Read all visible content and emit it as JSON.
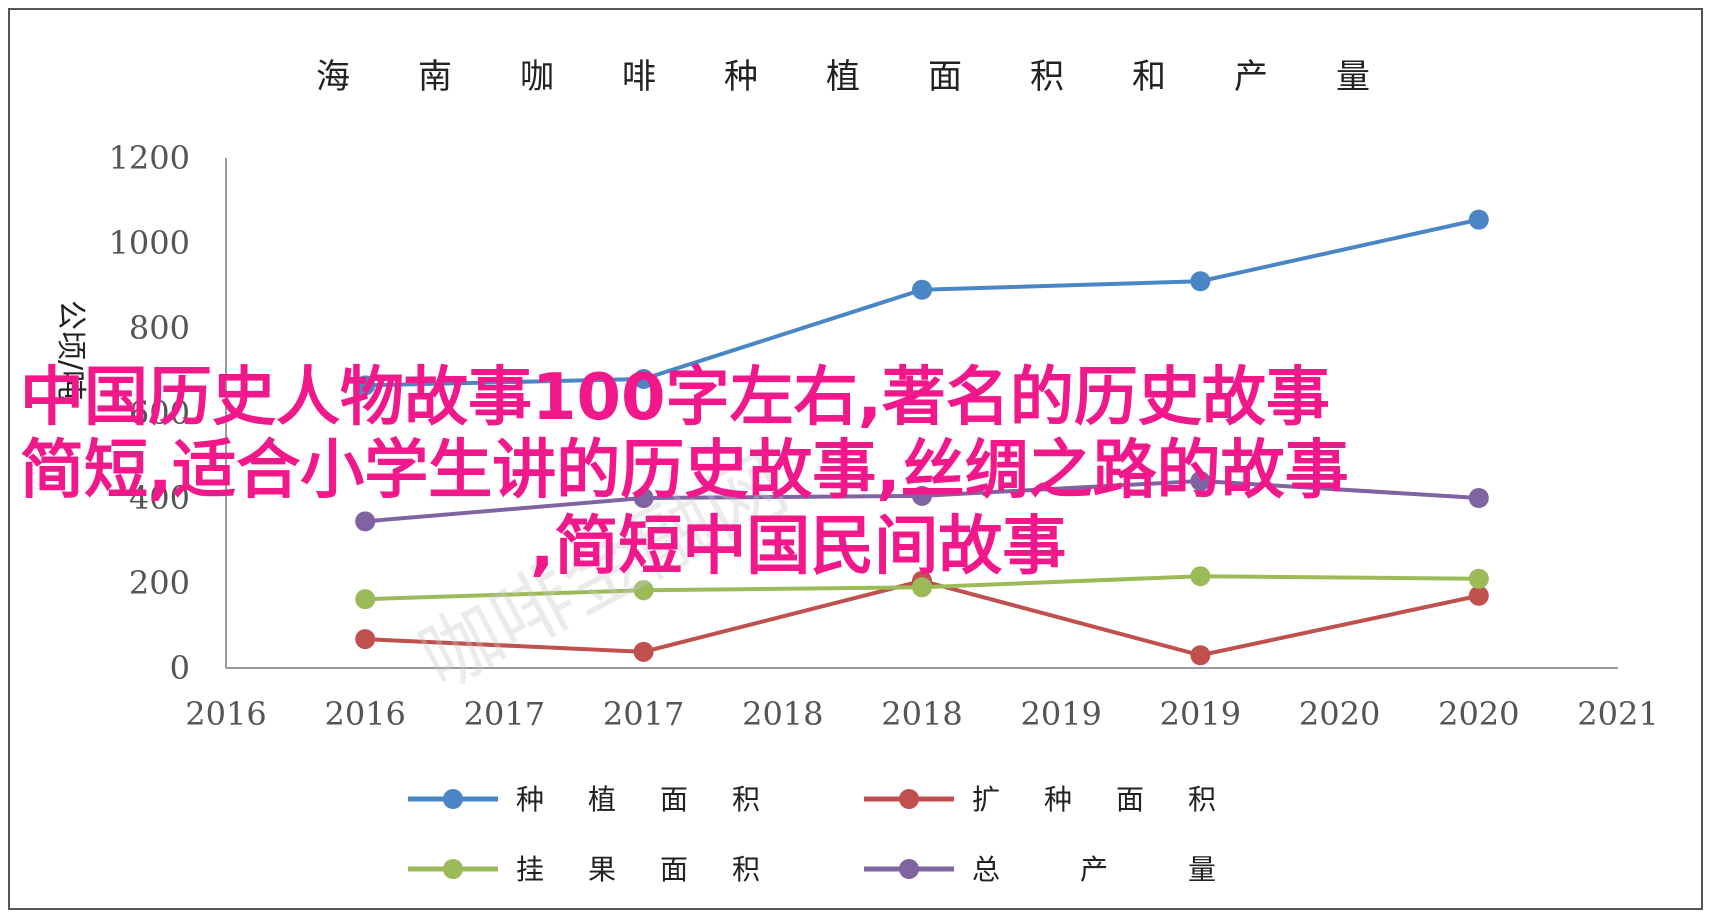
{
  "chart_data": {
    "type": "line",
    "title": "海南咖啡种植面积和产量",
    "ylabel": "公顷/吨",
    "xlabel": "",
    "ylim": [
      0,
      1200
    ],
    "y_ticks": [
      "0",
      "200",
      "400",
      "600",
      "800",
      "1000",
      "1200"
    ],
    "x_ticks": [
      "2016",
      "2016",
      "2017",
      "2017",
      "2018",
      "2018",
      "2019",
      "2019",
      "2020",
      "2020",
      "2021"
    ],
    "categories": [
      "2016",
      "2017",
      "2018",
      "2019",
      "2020"
    ],
    "grid": false,
    "legend_position": "bottom",
    "series": [
      {
        "name": "种植面积",
        "color": "#4a86c5",
        "values": [
          665,
          680,
          890,
          910,
          1055
        ]
      },
      {
        "name": "扩种面积",
        "color": "#c0504d",
        "values": [
          68,
          38,
          205,
          30,
          170
        ]
      },
      {
        "name": "挂果面积",
        "color": "#9bbb59",
        "values": [
          162,
          183,
          190,
          216,
          210
        ]
      },
      {
        "name": "总产量",
        "color": "#8064a2",
        "values": [
          345,
          400,
          405,
          440,
          400
        ]
      }
    ]
  },
  "overlay": {
    "lines": [
      "中国历史人物故事100字左右,著名的历史故事",
      "简短,适合小学生讲的历史故事,丝绸之路的故事",
      ",简短中国民间故事"
    ],
    "color": "#f0188a"
  },
  "watermark": {
    "text": "咖啡金融网"
  }
}
